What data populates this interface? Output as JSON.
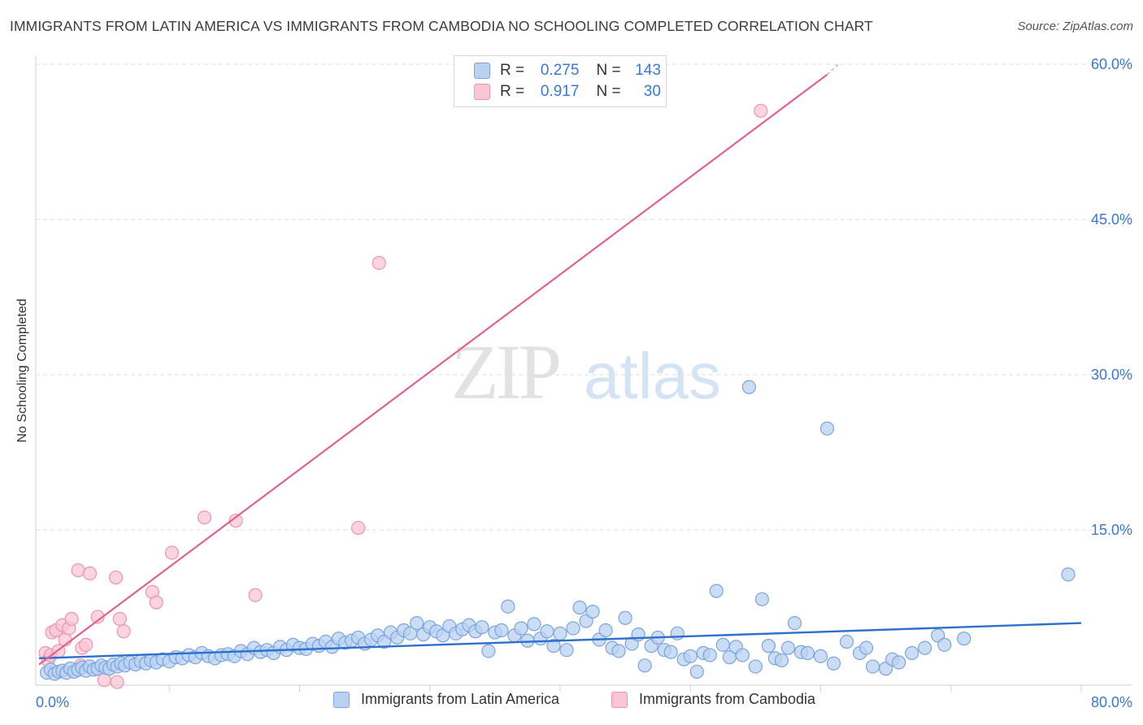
{
  "title": "IMMIGRANTS FROM LATIN AMERICA VS IMMIGRANTS FROM CAMBODIA NO SCHOOLING COMPLETED CORRELATION CHART",
  "source": "Source: ZipAtlas.com",
  "watermark": {
    "zip": "ZIP",
    "atlas": "atlas"
  },
  "colors": {
    "blue_fill": "#b9d2f2",
    "blue_stroke": "#7aa4de",
    "blue_line": "#2c6fcd",
    "pink_fill": "#f9c6d6",
    "pink_stroke": "#ec94b0",
    "pink_line": "#e4628a",
    "tick_text": "#3a78d4",
    "grid": "#dcdcdc"
  },
  "legend": {
    "rows": [
      {
        "r_label": "R =",
        "r_value": "0.275",
        "n_label": "N =",
        "n_value": "143"
      },
      {
        "r_label": "R =",
        "r_value": "0.917",
        "n_label": "N =",
        "n_value": "30"
      }
    ]
  },
  "chart_data": {
    "type": "scatter",
    "title": "IMMIGRANTS FROM LATIN AMERICA VS IMMIGRANTS FROM CAMBODIA NO SCHOOLING COMPLETED CORRELATION CHART",
    "xlabel": "",
    "ylabel": "No Schooling Completed",
    "xlim": [
      0,
      80
    ],
    "ylim": [
      0,
      62
    ],
    "x_tick_labels": [
      {
        "value": 0,
        "label": "0.0%"
      },
      {
        "value": 80,
        "label": "80.0%"
      }
    ],
    "y_tick_labels": [
      {
        "value": 15,
        "label": "15.0%"
      },
      {
        "value": 30,
        "label": "30.0%"
      },
      {
        "value": 45,
        "label": "45.0%"
      },
      {
        "value": 60,
        "label": "60.0%"
      }
    ],
    "series": [
      {
        "name": "Immigrants from Latin America",
        "color": "blue",
        "R": 0.275,
        "N": 143,
        "trend": {
          "x0": 0,
          "y0": 2.6,
          "x1": 80,
          "y1": 6.0
        },
        "points": [
          [
            0.6,
            1.2
          ],
          [
            0.9,
            1.5
          ],
          [
            1.2,
            1.1
          ],
          [
            1.5,
            1.3
          ],
          [
            1.8,
            1.4
          ],
          [
            2.1,
            1.2
          ],
          [
            2.4,
            1.6
          ],
          [
            2.7,
            1.3
          ],
          [
            3.0,
            1.5
          ],
          [
            3.3,
            1.7
          ],
          [
            3.6,
            1.4
          ],
          [
            3.9,
            1.8
          ],
          [
            4.2,
            1.5
          ],
          [
            4.5,
            1.6
          ],
          [
            4.8,
            1.9
          ],
          [
            5.1,
            1.7
          ],
          [
            5.4,
            1.6
          ],
          [
            5.7,
            2.0
          ],
          [
            6.0,
            1.8
          ],
          [
            6.3,
            2.1
          ],
          [
            6.6,
            1.9
          ],
          [
            7.0,
            2.2
          ],
          [
            7.4,
            2.0
          ],
          [
            7.8,
            2.3
          ],
          [
            8.2,
            2.1
          ],
          [
            8.6,
            2.4
          ],
          [
            9.0,
            2.2
          ],
          [
            9.5,
            2.5
          ],
          [
            10.0,
            2.3
          ],
          [
            10.5,
            2.7
          ],
          [
            11.0,
            2.6
          ],
          [
            11.5,
            2.9
          ],
          [
            12.0,
            2.7
          ],
          [
            12.5,
            3.1
          ],
          [
            13.0,
            2.8
          ],
          [
            13.5,
            2.6
          ],
          [
            14.0,
            2.9
          ],
          [
            14.5,
            3.0
          ],
          [
            15.0,
            2.8
          ],
          [
            15.5,
            3.3
          ],
          [
            16.0,
            3.0
          ],
          [
            16.5,
            3.6
          ],
          [
            17.0,
            3.2
          ],
          [
            17.5,
            3.4
          ],
          [
            18.0,
            3.1
          ],
          [
            18.5,
            3.7
          ],
          [
            19.0,
            3.4
          ],
          [
            19.5,
            3.9
          ],
          [
            20.0,
            3.6
          ],
          [
            20.5,
            3.5
          ],
          [
            21.0,
            4.0
          ],
          [
            21.5,
            3.8
          ],
          [
            22.0,
            4.2
          ],
          [
            22.5,
            3.7
          ],
          [
            23.0,
            4.5
          ],
          [
            23.5,
            4.1
          ],
          [
            24.0,
            4.3
          ],
          [
            24.5,
            4.6
          ],
          [
            25.0,
            4.0
          ],
          [
            25.5,
            4.4
          ],
          [
            26.0,
            4.8
          ],
          [
            26.5,
            4.2
          ],
          [
            27.0,
            5.1
          ],
          [
            27.5,
            4.6
          ],
          [
            28.0,
            5.3
          ],
          [
            28.5,
            5.0
          ],
          [
            29.0,
            6.0
          ],
          [
            29.5,
            4.9
          ],
          [
            30.0,
            5.6
          ],
          [
            30.5,
            5.2
          ],
          [
            31.0,
            4.8
          ],
          [
            31.5,
            5.7
          ],
          [
            32.0,
            5.0
          ],
          [
            32.5,
            5.4
          ],
          [
            33.0,
            5.8
          ],
          [
            33.5,
            5.2
          ],
          [
            34.0,
            5.6
          ],
          [
            34.5,
            3.3
          ],
          [
            35.0,
            5.1
          ],
          [
            35.5,
            5.3
          ],
          [
            36.0,
            7.6
          ],
          [
            36.5,
            4.8
          ],
          [
            37.0,
            5.5
          ],
          [
            37.5,
            4.3
          ],
          [
            38.0,
            5.9
          ],
          [
            38.5,
            4.5
          ],
          [
            39.0,
            5.2
          ],
          [
            39.5,
            3.8
          ],
          [
            40.0,
            5.0
          ],
          [
            40.5,
            3.4
          ],
          [
            41.0,
            5.5
          ],
          [
            41.5,
            7.5
          ],
          [
            42.0,
            6.2
          ],
          [
            42.5,
            7.1
          ],
          [
            43.0,
            4.4
          ],
          [
            43.5,
            5.3
          ],
          [
            44.0,
            3.6
          ],
          [
            44.5,
            3.3
          ],
          [
            45.0,
            6.5
          ],
          [
            45.5,
            4.0
          ],
          [
            46.0,
            4.9
          ],
          [
            46.5,
            1.9
          ],
          [
            47.0,
            3.8
          ],
          [
            47.5,
            4.6
          ],
          [
            48.0,
            3.4
          ],
          [
            48.5,
            3.2
          ],
          [
            49.0,
            5.0
          ],
          [
            49.5,
            2.5
          ],
          [
            50.0,
            2.8
          ],
          [
            50.5,
            1.3
          ],
          [
            51.0,
            3.1
          ],
          [
            51.5,
            2.9
          ],
          [
            52.0,
            9.1
          ],
          [
            52.5,
            3.9
          ],
          [
            53.0,
            2.7
          ],
          [
            53.5,
            3.7
          ],
          [
            54.0,
            2.9
          ],
          [
            54.5,
            28.8
          ],
          [
            55.0,
            1.8
          ],
          [
            55.5,
            8.3
          ],
          [
            56.0,
            3.8
          ],
          [
            56.5,
            2.6
          ],
          [
            57.0,
            2.4
          ],
          [
            57.5,
            3.6
          ],
          [
            58.0,
            6.0
          ],
          [
            58.5,
            3.2
          ],
          [
            59.0,
            3.1
          ],
          [
            60.0,
            2.8
          ],
          [
            60.5,
            24.8
          ],
          [
            61.0,
            2.1
          ],
          [
            62.0,
            4.2
          ],
          [
            63.0,
            3.1
          ],
          [
            63.5,
            3.6
          ],
          [
            64.0,
            1.8
          ],
          [
            65.0,
            1.6
          ],
          [
            65.5,
            2.5
          ],
          [
            66.0,
            2.2
          ],
          [
            67.0,
            3.1
          ],
          [
            68.0,
            3.6
          ],
          [
            69.0,
            4.8
          ],
          [
            69.5,
            3.9
          ],
          [
            71.0,
            4.5
          ],
          [
            79.0,
            10.7
          ]
        ]
      },
      {
        "name": "Immigrants from Cambodia",
        "color": "pink",
        "R": 0.917,
        "N": 30,
        "trend": {
          "x0": 0,
          "y0": 2.0,
          "x1": 60.5,
          "y1": 59.0
        },
        "points": [
          [
            0.5,
            3.1
          ],
          [
            0.7,
            2.4
          ],
          [
            0.9,
            2.9
          ],
          [
            1.0,
            5.1
          ],
          [
            1.3,
            5.3
          ],
          [
            1.5,
            3.3
          ],
          [
            1.8,
            5.8
          ],
          [
            2.0,
            4.4
          ],
          [
            2.3,
            5.5
          ],
          [
            2.5,
            6.4
          ],
          [
            3.0,
            11.1
          ],
          [
            3.3,
            3.6
          ],
          [
            3.6,
            3.9
          ],
          [
            3.9,
            10.8
          ],
          [
            4.5,
            6.6
          ],
          [
            5.0,
            0.5
          ],
          [
            5.9,
            10.4
          ],
          [
            6.2,
            6.4
          ],
          [
            6.5,
            5.2
          ],
          [
            8.7,
            9.0
          ],
          [
            9.0,
            8.0
          ],
          [
            10.2,
            12.8
          ],
          [
            12.7,
            16.2
          ],
          [
            15.1,
            15.9
          ],
          [
            16.6,
            8.7
          ],
          [
            24.5,
            15.2
          ],
          [
            26.1,
            40.8
          ],
          [
            55.4,
            55.5
          ],
          [
            3.2,
            1.9
          ],
          [
            6.0,
            0.3
          ]
        ]
      }
    ]
  },
  "bottom_legend": [
    {
      "label": "Immigrants from Latin America"
    },
    {
      "label": "Immigrants from Cambodia"
    }
  ]
}
